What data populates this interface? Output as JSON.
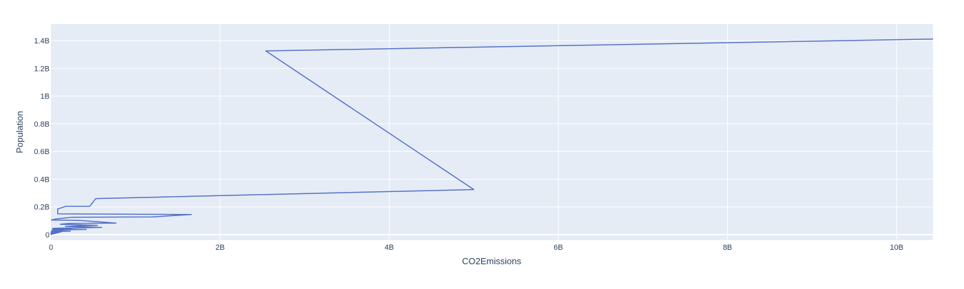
{
  "chart_data": {
    "type": "line",
    "xlabel": "CO2Emissions",
    "ylabel": "Population",
    "xlim": [
      0,
      10430000000
    ],
    "ylim": [
      -40000000,
      1520000000
    ],
    "x_ticks": [
      {
        "value": 0,
        "label": "0"
      },
      {
        "value": 2000000000,
        "label": "2B"
      },
      {
        "value": 4000000000,
        "label": "4B"
      },
      {
        "value": 6000000000,
        "label": "6B"
      },
      {
        "value": 8000000000,
        "label": "8B"
      },
      {
        "value": 10000000000,
        "label": "10B"
      }
    ],
    "y_ticks": [
      {
        "value": 0,
        "label": "0"
      },
      {
        "value": 200000000,
        "label": "0.2B"
      },
      {
        "value": 400000000,
        "label": "0.4B"
      },
      {
        "value": 600000000,
        "label": "0.6B"
      },
      {
        "value": 800000000,
        "label": "0.8B"
      },
      {
        "value": 1000000000,
        "label": "1B"
      },
      {
        "value": 1200000000,
        "label": "1.2B"
      },
      {
        "value": 1400000000,
        "label": "1.4B"
      }
    ],
    "grid": true,
    "series": [
      {
        "color": "#5470c6",
        "x": [
          10430000000,
          2540000000,
          5000000000,
          530000000,
          460000000,
          180000000,
          80000000,
          80000000,
          1660000000,
          1200000000,
          250000000,
          50000000,
          5000000,
          350000000,
          770000000,
          220000000,
          110000000,
          550000000,
          170000000,
          600000000,
          25000000,
          250000000,
          15000000,
          420000000,
          20000000,
          150000000,
          10000000,
          230000000,
          5000000,
          120000000,
          2000000,
          90000000,
          1000000,
          60000000,
          500000,
          30000000,
          200000,
          10000000,
          100000
        ],
        "y": [
          1412000000,
          1326000000,
          325000000,
          260000000,
          205000000,
          205000000,
          185000000,
          150000000,
          145000000,
          128000000,
          125000000,
          112000000,
          105000000,
          102000000,
          83000000,
          81000000,
          75000000,
          67000000,
          60000000,
          52000000,
          46000000,
          44000000,
          40000000,
          37000000,
          34000000,
          31000000,
          28000000,
          25000000,
          22000000,
          19000000,
          16000000,
          13000000,
          11000000,
          9000000,
          7000000,
          5000000,
          3000000,
          1500000,
          500000
        ]
      }
    ]
  }
}
